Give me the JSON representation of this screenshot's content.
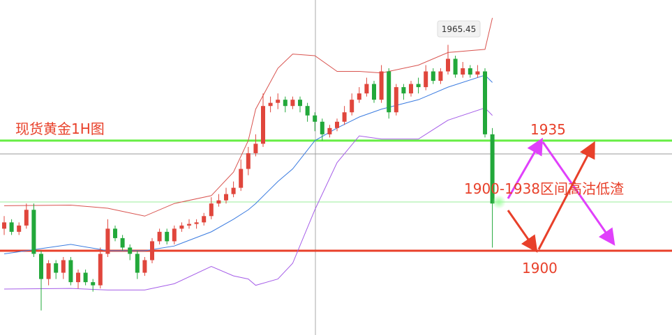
{
  "chart_data": {
    "type": "candlestick",
    "title": "现货黄金1H图",
    "annotation": "1900-1938区间高沽低渣",
    "ylim": [
      1873.2,
      1979.7
    ],
    "up_color": "#e0463c",
    "down_color": "#22a83a",
    "open": [
      1907,
      1909,
      1906,
      1908,
      1913,
      1899,
      1891,
      1896,
      1893,
      1897,
      1890,
      1893,
      1890,
      1889,
      1899,
      1907,
      1904,
      1901,
      1899,
      1893,
      1897,
      1903,
      1906,
      1903,
      1907,
      1908,
      1908.5,
      1909,
      1911,
      1915,
      1916,
      1918,
      1920,
      1926,
      1931,
      1934,
      1946,
      1947,
      1948,
      1946,
      1948,
      1946,
      1943,
      1941,
      1937,
      1939,
      1941,
      1944,
      1948,
      1950,
      1953,
      1948,
      1957,
      1944,
      1952,
      1950,
      1953,
      1952,
      1957,
      1954,
      1957,
      1961,
      1956,
      1958,
      1956,
      1957,
      1937
    ],
    "high": [
      1911,
      1910,
      1909,
      1915,
      1915,
      1900,
      1897,
      1897,
      1898,
      1898,
      1894,
      1894,
      1891,
      1901,
      1910,
      1908,
      1905,
      1902,
      1900,
      1898,
      1904,
      1907,
      1907,
      1908,
      1909,
      1910,
      1910,
      1912,
      1917,
      1918,
      1920,
      1922,
      1929,
      1933,
      1937,
      1950,
      1949,
      1950,
      1949,
      1949,
      1949,
      1947,
      1944,
      1942,
      1940,
      1942,
      1946,
      1950,
      1952,
      1955,
      1954,
      1959,
      1958,
      1953,
      1953,
      1954,
      1955,
      1959,
      1958,
      1958,
      1965.45,
      1962,
      1960,
      1959,
      1959,
      1958,
      1939
    ],
    "low": [
      1905,
      1905,
      1905,
      1907,
      1898,
      1881,
      1889,
      1891,
      1891,
      1889,
      1888,
      1889,
      1887,
      1888,
      1898,
      1903,
      1900,
      1897,
      1891,
      1892,
      1896,
      1902,
      1902,
      1902,
      1906,
      1907,
      1907,
      1908,
      1910,
      1914,
      1915,
      1917,
      1919,
      1924,
      1930,
      1933,
      1944,
      1945,
      1944,
      1945,
      1944,
      1941,
      1938,
      1935,
      1936,
      1938,
      1940,
      1943,
      1947,
      1949,
      1947,
      1947,
      1942,
      1943,
      1948,
      1949,
      1950,
      1951,
      1953,
      1953,
      1956,
      1955,
      1955,
      1955,
      1955,
      1936,
      1901
    ],
    "close": [
      1909,
      1906,
      1908,
      1913,
      1899,
      1891,
      1896,
      1893,
      1897,
      1890,
      1893,
      1890,
      1889,
      1899,
      1907,
      1904,
      1901,
      1899,
      1893,
      1897,
      1903,
      1906,
      1903,
      1907,
      1908,
      1908.5,
      1909,
      1911,
      1915,
      1916,
      1918,
      1920,
      1926,
      1931,
      1934,
      1946,
      1947,
      1948,
      1946,
      1948,
      1946,
      1943,
      1941,
      1937,
      1939,
      1941,
      1944,
      1948,
      1950,
      1953,
      1948,
      1957,
      1944,
      1952,
      1950,
      1953,
      1952,
      1957,
      1954,
      1957,
      1961,
      1956,
      1958,
      1956,
      1957,
      1937,
      1915
    ],
    "bands": {
      "x": [
        0,
        9,
        14,
        19,
        23,
        28,
        31,
        33,
        34,
        37,
        39,
        42,
        45,
        48,
        51,
        56,
        60,
        65,
        66
      ],
      "series": [
        {
          "name": "upper",
          "color": "#d9534f",
          "values": [
            1914.3,
            1914.5,
            1913.5,
            1911,
            1915,
            1917.5,
            1925,
            1935,
            1945,
            1958,
            1962.5,
            1962,
            1957,
            1957,
            1956.5,
            1959,
            1963,
            1964,
            1974
          ]
        },
        {
          "name": "middle",
          "color": "#3a7be0",
          "values": [
            1899,
            1902,
            1900,
            1900,
            1901.5,
            1906,
            1910,
            1913,
            1915,
            1922,
            1926,
            1935,
            1939,
            1942.5,
            1945,
            1948,
            1952,
            1955.8,
            1953.5
          ]
        },
        {
          "name": "lower",
          "color": "#a55de8",
          "values": [
            1887.8,
            1888,
            1887.5,
            1887.5,
            1889.5,
            1895,
            1892,
            1891,
            1889,
            1891,
            1896,
            1913,
            1928,
            1936.5,
            1935.5,
            1935.5,
            1941.5,
            1945.4,
            1943
          ]
        }
      ]
    },
    "levels": [
      {
        "value": 1935,
        "label": "1935",
        "color": "#66ee44"
      },
      {
        "value": 1900,
        "label": "1900",
        "color": "#e8402a"
      }
    ]
  }
}
